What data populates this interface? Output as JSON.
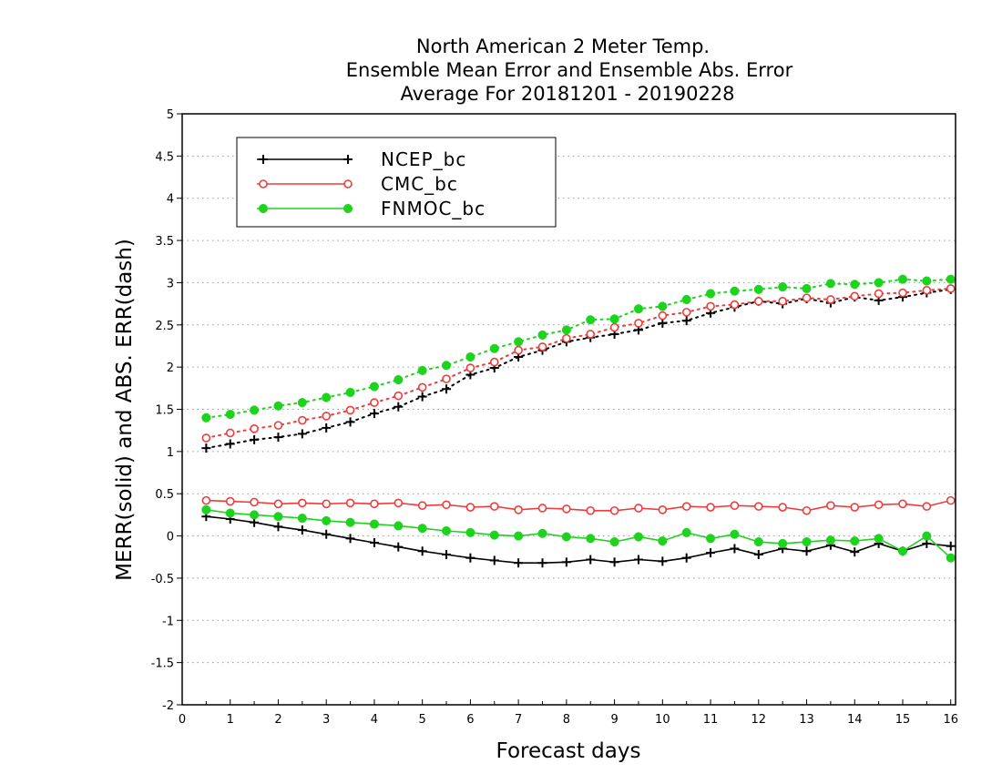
{
  "chart_data": {
    "type": "line",
    "title": [
      "North American 2 Meter Temp.",
      "Ensemble Mean Error and Ensemble Abs. Error",
      "Average For 20181201 - 20190228"
    ],
    "xlabel": "Forecast days",
    "ylabel": "MERR(solid) and ABS. ERR(dash)",
    "xlim": [
      0,
      16.1
    ],
    "ylim": [
      -2,
      5
    ],
    "xticks": [
      0,
      1,
      2,
      3,
      4,
      5,
      6,
      7,
      8,
      9,
      10,
      11,
      12,
      13,
      14,
      15,
      16
    ],
    "yticks": [
      -2,
      -1.5,
      -1,
      -0.5,
      0,
      0.5,
      1,
      1.5,
      2,
      2.5,
      3,
      3.5,
      4,
      4.5,
      5
    ],
    "ytick_labels": [
      "-2",
      "-1.5",
      "-1",
      "-0.5",
      "0",
      "0.5",
      "1",
      "1.5",
      "2",
      "2.5",
      "3",
      "3.5",
      "4",
      "4.5",
      "5"
    ],
    "grid": "horizontal dotted",
    "legend_position": "top-left",
    "x": [
      0.5,
      1,
      1.5,
      2,
      2.5,
      3,
      3.5,
      4,
      4.5,
      5,
      5.5,
      6,
      6.5,
      7,
      7.5,
      8,
      8.5,
      9,
      9.5,
      10,
      10.5,
      11,
      11.5,
      12,
      12.5,
      13,
      13.5,
      14,
      14.5,
      15,
      15.5,
      16
    ],
    "series": [
      {
        "name": "NCEP_bc",
        "color": "#000000",
        "marker": "plus",
        "merr": [
          0.23,
          0.2,
          0.16,
          0.11,
          0.07,
          0.02,
          -0.03,
          -0.08,
          -0.13,
          -0.18,
          -0.22,
          -0.26,
          -0.29,
          -0.32,
          -0.32,
          -0.31,
          -0.28,
          -0.31,
          -0.28,
          -0.3,
          -0.26,
          -0.2,
          -0.15,
          -0.22,
          -0.15,
          -0.18,
          -0.11,
          -0.19,
          -0.09,
          -0.18,
          -0.09,
          -0.12
        ],
        "abs_err": [
          1.04,
          1.09,
          1.14,
          1.17,
          1.21,
          1.28,
          1.35,
          1.45,
          1.53,
          1.65,
          1.74,
          1.91,
          1.99,
          2.12,
          2.2,
          2.3,
          2.35,
          2.39,
          2.44,
          2.52,
          2.55,
          2.64,
          2.71,
          2.78,
          2.75,
          2.81,
          2.76,
          2.83,
          2.79,
          2.83,
          2.88,
          2.92
        ]
      },
      {
        "name": "CMC_bc",
        "color": "#ef3b3b",
        "marker": "open-circle",
        "merr": [
          0.42,
          0.41,
          0.4,
          0.38,
          0.39,
          0.38,
          0.39,
          0.38,
          0.39,
          0.36,
          0.37,
          0.34,
          0.35,
          0.31,
          0.33,
          0.32,
          0.3,
          0.3,
          0.33,
          0.31,
          0.35,
          0.34,
          0.36,
          0.35,
          0.34,
          0.3,
          0.36,
          0.34,
          0.37,
          0.38,
          0.35,
          0.42
        ],
        "abs_err": [
          1.16,
          1.22,
          1.27,
          1.31,
          1.37,
          1.42,
          1.49,
          1.58,
          1.66,
          1.76,
          1.86,
          1.99,
          2.06,
          2.2,
          2.24,
          2.34,
          2.39,
          2.47,
          2.52,
          2.61,
          2.65,
          2.72,
          2.74,
          2.78,
          2.78,
          2.82,
          2.8,
          2.84,
          2.87,
          2.88,
          2.91,
          2.93
        ]
      },
      {
        "name": "FNMOC_bc",
        "color": "#1ed31e",
        "marker": "filled-circle",
        "merr": [
          0.31,
          0.27,
          0.25,
          0.23,
          0.21,
          0.18,
          0.16,
          0.14,
          0.12,
          0.09,
          0.06,
          0.04,
          0.01,
          0.0,
          0.03,
          -0.01,
          -0.03,
          -0.07,
          -0.01,
          -0.06,
          0.04,
          -0.03,
          0.02,
          -0.07,
          -0.09,
          -0.07,
          -0.05,
          -0.06,
          -0.03,
          -0.18,
          0.0,
          -0.26
        ],
        "abs_err": [
          1.4,
          1.44,
          1.49,
          1.54,
          1.58,
          1.64,
          1.7,
          1.77,
          1.85,
          1.96,
          2.02,
          2.12,
          2.22,
          2.3,
          2.38,
          2.44,
          2.56,
          2.57,
          2.69,
          2.72,
          2.8,
          2.87,
          2.9,
          2.92,
          2.95,
          2.93,
          2.99,
          2.98,
          3.0,
          3.04,
          3.02,
          3.04
        ]
      }
    ]
  }
}
